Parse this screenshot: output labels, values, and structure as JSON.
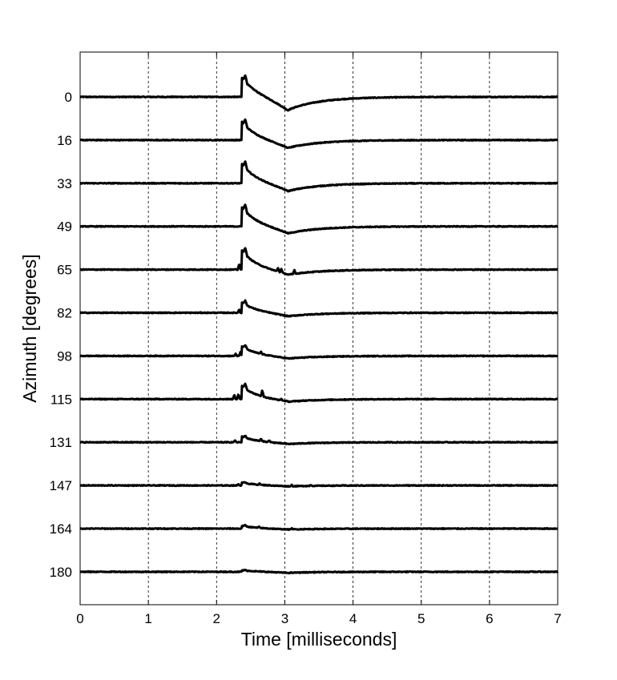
{
  "chart_data": {
    "type": "line",
    "title": "",
    "xlabel": "Time [milliseconds]",
    "ylabel": "Azimuth [degrees]",
    "xlim": [
      0,
      7
    ],
    "xticks": [
      "0",
      "1",
      "2",
      "3",
      "4",
      "5",
      "6",
      "7"
    ],
    "grid": "vertical dashed at x ticks",
    "series": [
      {
        "label": "0",
        "peak": 1.0,
        "dip": 0.75,
        "spikes": []
      },
      {
        "label": "16",
        "peak": 0.95,
        "dip": 0.45,
        "spikes": []
      },
      {
        "label": "33",
        "peak": 1.0,
        "dip": 0.45,
        "spikes": []
      },
      {
        "label": "49",
        "peak": 1.0,
        "dip": 0.4,
        "spikes": []
      },
      {
        "label": "65",
        "peak": 1.0,
        "dip": 0.3,
        "spikes": [
          [
            2.33,
            0.3
          ],
          [
            2.9,
            0.2
          ],
          [
            2.95,
            0.2
          ],
          [
            3.14,
            0.22
          ]
        ]
      },
      {
        "label": "82",
        "peak": 0.55,
        "dip": 0.2,
        "spikes": [
          [
            2.33,
            0.18
          ]
        ]
      },
      {
        "label": "98",
        "peak": 0.5,
        "dip": 0.15,
        "spikes": [
          [
            2.28,
            0.12
          ],
          [
            2.35,
            0.2
          ],
          [
            2.65,
            0.12
          ]
        ]
      },
      {
        "label": "115",
        "peak": 0.7,
        "dip": 0.15,
        "spikes": [
          [
            2.26,
            0.25
          ],
          [
            2.32,
            0.25
          ],
          [
            2.67,
            0.35
          ],
          [
            2.95,
            0.08
          ]
        ]
      },
      {
        "label": "131",
        "peak": 0.3,
        "dip": 0.1,
        "spikes": [
          [
            2.27,
            0.1
          ],
          [
            2.65,
            0.12
          ],
          [
            2.77,
            0.1
          ]
        ]
      },
      {
        "label": "147",
        "peak": 0.15,
        "dip": 0.05,
        "spikes": [
          [
            2.32,
            0.08
          ],
          [
            2.63,
            0.06
          ],
          [
            3.1,
            0.07
          ],
          [
            3.38,
            0.06
          ]
        ]
      },
      {
        "label": "164",
        "peak": 0.15,
        "dip": 0.05,
        "spikes": [
          [
            2.62,
            0.06
          ],
          [
            3.1,
            0.06
          ]
        ]
      },
      {
        "label": "180",
        "peak": 0.08,
        "dip": 0.06,
        "spikes": []
      }
    ]
  }
}
